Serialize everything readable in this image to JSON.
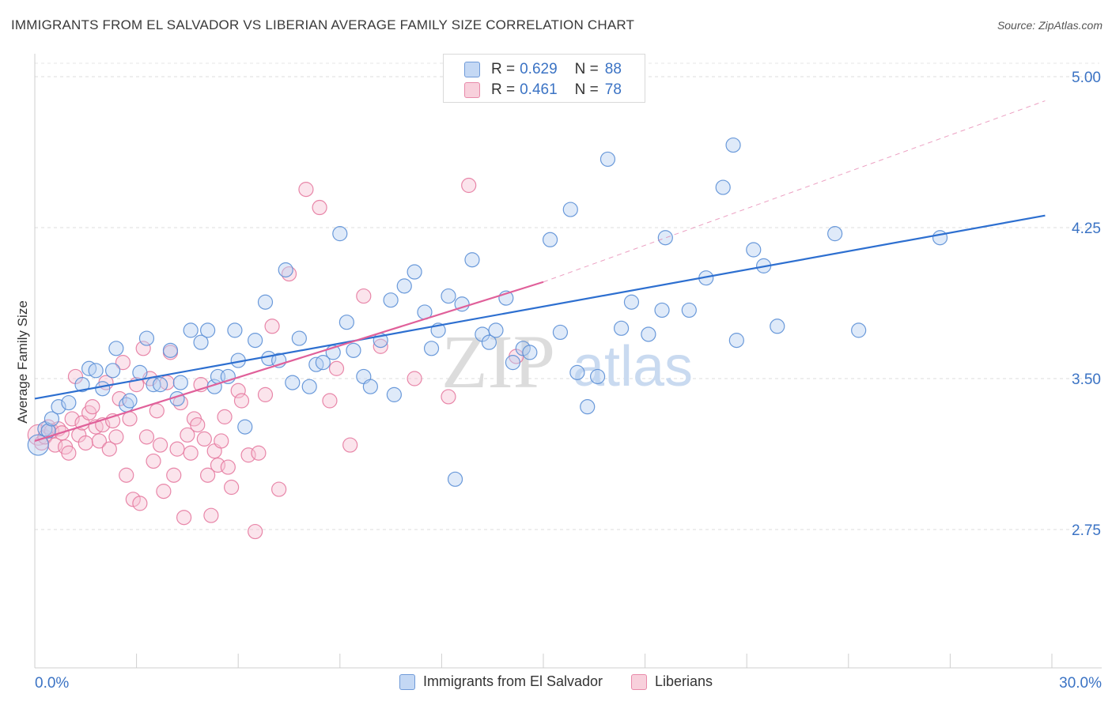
{
  "title": "IMMIGRANTS FROM EL SALVADOR VS LIBERIAN AVERAGE FAMILY SIZE CORRELATION CHART",
  "source": "Source: ZipAtlas.com",
  "watermark": {
    "zip": "ZIP",
    "atlas": "atlas"
  },
  "legend_top": [
    {
      "r_label": "R =",
      "r_value": "0.629",
      "n_label": "N =",
      "n_value": "88"
    },
    {
      "r_label": "R =",
      "r_value": "0.461",
      "n_label": "N =",
      "n_value": "78"
    }
  ],
  "chart_data": {
    "type": "scatter",
    "title": "IMMIGRANTS FROM EL SALVADOR VS LIBERIAN AVERAGE FAMILY SIZE CORRELATION CHART",
    "xlabel": "",
    "ylabel": "Average Family Size",
    "xlim": [
      0,
      30
    ],
    "ylim": [
      2.0,
      5.1
    ],
    "x_tick_labels": [
      "0.0%",
      "30.0%"
    ],
    "y_ticks": [
      2.75,
      3.5,
      4.25,
      5.0
    ],
    "y_tick_labels": [
      "2.75",
      "3.50",
      "4.25",
      "5.00"
    ],
    "grid": true,
    "legend_position": "top-center",
    "colors": {
      "blue": "#5b8fd6",
      "blue_fill": "#b8d0f2",
      "pink": "#e67aa0",
      "pink_fill": "#f6c4d4",
      "blue_line": "#2d6fd0",
      "pink_line": "#e0609a",
      "tick_label": "#3b73c4"
    },
    "series": [
      {
        "name": "Immigrants from El Salvador",
        "r": 0.629,
        "n": 88,
        "trend": {
          "x": [
            0,
            29.8
          ],
          "y": [
            3.4,
            4.31
          ]
        },
        "points": [
          [
            0.1,
            3.17
          ],
          [
            0.3,
            3.25
          ],
          [
            0.4,
            3.24
          ],
          [
            0.5,
            3.3
          ],
          [
            0.7,
            3.36
          ],
          [
            1.0,
            3.38
          ],
          [
            1.4,
            3.47
          ],
          [
            1.6,
            3.55
          ],
          [
            1.8,
            3.54
          ],
          [
            2.0,
            3.45
          ],
          [
            2.3,
            3.54
          ],
          [
            2.4,
            3.65
          ],
          [
            2.7,
            3.37
          ],
          [
            2.8,
            3.39
          ],
          [
            3.1,
            3.53
          ],
          [
            3.3,
            3.7
          ],
          [
            3.5,
            3.47
          ],
          [
            3.7,
            3.47
          ],
          [
            4.0,
            3.64
          ],
          [
            4.2,
            3.4
          ],
          [
            4.3,
            3.48
          ],
          [
            4.6,
            3.74
          ],
          [
            4.9,
            3.68
          ],
          [
            5.1,
            3.74
          ],
          [
            5.3,
            3.46
          ],
          [
            5.4,
            3.51
          ],
          [
            5.7,
            3.51
          ],
          [
            5.9,
            3.74
          ],
          [
            6.0,
            3.59
          ],
          [
            6.2,
            3.26
          ],
          [
            6.5,
            3.69
          ],
          [
            6.8,
            3.88
          ],
          [
            6.9,
            3.6
          ],
          [
            7.2,
            3.59
          ],
          [
            7.4,
            4.04
          ],
          [
            7.6,
            3.48
          ],
          [
            7.8,
            3.7
          ],
          [
            8.1,
            3.46
          ],
          [
            8.3,
            3.57
          ],
          [
            8.5,
            3.58
          ],
          [
            8.8,
            3.63
          ],
          [
            9.0,
            4.22
          ],
          [
            9.2,
            3.78
          ],
          [
            9.4,
            3.64
          ],
          [
            9.7,
            3.51
          ],
          [
            9.9,
            3.46
          ],
          [
            10.2,
            3.69
          ],
          [
            10.5,
            3.89
          ],
          [
            10.6,
            3.42
          ],
          [
            10.9,
            3.96
          ],
          [
            11.2,
            4.03
          ],
          [
            11.5,
            3.83
          ],
          [
            11.7,
            3.65
          ],
          [
            11.9,
            3.74
          ],
          [
            12.2,
            3.91
          ],
          [
            12.4,
            3.0
          ],
          [
            12.6,
            3.87
          ],
          [
            12.9,
            4.09
          ],
          [
            13.2,
            3.72
          ],
          [
            13.4,
            3.68
          ],
          [
            13.6,
            3.74
          ],
          [
            13.9,
            3.9
          ],
          [
            14.1,
            3.58
          ],
          [
            14.4,
            3.65
          ],
          [
            14.6,
            3.63
          ],
          [
            15.2,
            4.19
          ],
          [
            15.5,
            3.73
          ],
          [
            15.8,
            4.34
          ],
          [
            16.0,
            3.53
          ],
          [
            16.3,
            3.36
          ],
          [
            16.6,
            3.51
          ],
          [
            16.9,
            4.59
          ],
          [
            17.3,
            3.75
          ],
          [
            17.6,
            3.88
          ],
          [
            18.1,
            3.72
          ],
          [
            18.5,
            3.84
          ],
          [
            18.6,
            4.2
          ],
          [
            19.3,
            3.84
          ],
          [
            19.8,
            4.0
          ],
          [
            20.3,
            4.45
          ],
          [
            20.6,
            4.66
          ],
          [
            20.7,
            3.69
          ],
          [
            21.2,
            4.14
          ],
          [
            21.5,
            4.06
          ],
          [
            21.9,
            3.76
          ],
          [
            23.6,
            4.22
          ],
          [
            24.3,
            3.74
          ],
          [
            26.7,
            4.2
          ]
        ]
      },
      {
        "name": "Liberians",
        "r": 0.461,
        "n": 78,
        "trend": {
          "x": [
            0,
            15.0
          ],
          "y": [
            3.19,
            3.98
          ]
        },
        "trend_dashed": {
          "x": [
            15.0,
            29.8
          ],
          "y": [
            3.98,
            4.88
          ]
        },
        "points": [
          [
            0.1,
            3.22
          ],
          [
            0.2,
            3.18
          ],
          [
            0.3,
            3.21
          ],
          [
            0.4,
            3.26
          ],
          [
            0.5,
            3.24
          ],
          [
            0.6,
            3.17
          ],
          [
            0.7,
            3.25
          ],
          [
            0.8,
            3.23
          ],
          [
            0.9,
            3.16
          ],
          [
            1.0,
            3.13
          ],
          [
            1.1,
            3.3
          ],
          [
            1.2,
            3.51
          ],
          [
            1.3,
            3.22
          ],
          [
            1.4,
            3.28
          ],
          [
            1.5,
            3.18
          ],
          [
            1.6,
            3.33
          ],
          [
            1.7,
            3.36
          ],
          [
            1.8,
            3.26
          ],
          [
            1.9,
            3.19
          ],
          [
            2.0,
            3.27
          ],
          [
            2.1,
            3.48
          ],
          [
            2.2,
            3.15
          ],
          [
            2.3,
            3.29
          ],
          [
            2.4,
            3.21
          ],
          [
            2.5,
            3.4
          ],
          [
            2.6,
            3.58
          ],
          [
            2.7,
            3.02
          ],
          [
            2.8,
            3.3
          ],
          [
            2.9,
            2.9
          ],
          [
            3.0,
            3.47
          ],
          [
            3.1,
            2.88
          ],
          [
            3.2,
            3.65
          ],
          [
            3.3,
            3.21
          ],
          [
            3.4,
            3.5
          ],
          [
            3.5,
            3.09
          ],
          [
            3.6,
            3.34
          ],
          [
            3.7,
            3.17
          ],
          [
            3.8,
            2.94
          ],
          [
            3.9,
            3.48
          ],
          [
            4.0,
            3.63
          ],
          [
            4.1,
            3.02
          ],
          [
            4.2,
            3.15
          ],
          [
            4.3,
            3.38
          ],
          [
            4.4,
            2.81
          ],
          [
            4.5,
            3.22
          ],
          [
            4.6,
            3.13
          ],
          [
            4.7,
            3.3
          ],
          [
            4.8,
            3.27
          ],
          [
            4.9,
            3.47
          ],
          [
            5.0,
            3.2
          ],
          [
            5.1,
            3.02
          ],
          [
            5.2,
            2.82
          ],
          [
            5.3,
            3.14
          ],
          [
            5.4,
            3.07
          ],
          [
            5.5,
            3.19
          ],
          [
            5.6,
            3.31
          ],
          [
            5.7,
            3.06
          ],
          [
            5.8,
            2.96
          ],
          [
            6.0,
            3.44
          ],
          [
            6.1,
            3.39
          ],
          [
            6.3,
            3.12
          ],
          [
            6.5,
            2.74
          ],
          [
            6.6,
            3.13
          ],
          [
            6.8,
            3.42
          ],
          [
            7.0,
            3.76
          ],
          [
            7.2,
            2.95
          ],
          [
            7.5,
            4.02
          ],
          [
            8.0,
            4.44
          ],
          [
            8.4,
            4.35
          ],
          [
            8.7,
            3.39
          ],
          [
            8.9,
            3.55
          ],
          [
            9.3,
            3.17
          ],
          [
            9.7,
            3.91
          ],
          [
            10.2,
            3.66
          ],
          [
            11.2,
            3.5
          ],
          [
            12.2,
            3.41
          ],
          [
            12.8,
            4.46
          ],
          [
            14.2,
            3.61
          ]
        ]
      }
    ]
  }
}
